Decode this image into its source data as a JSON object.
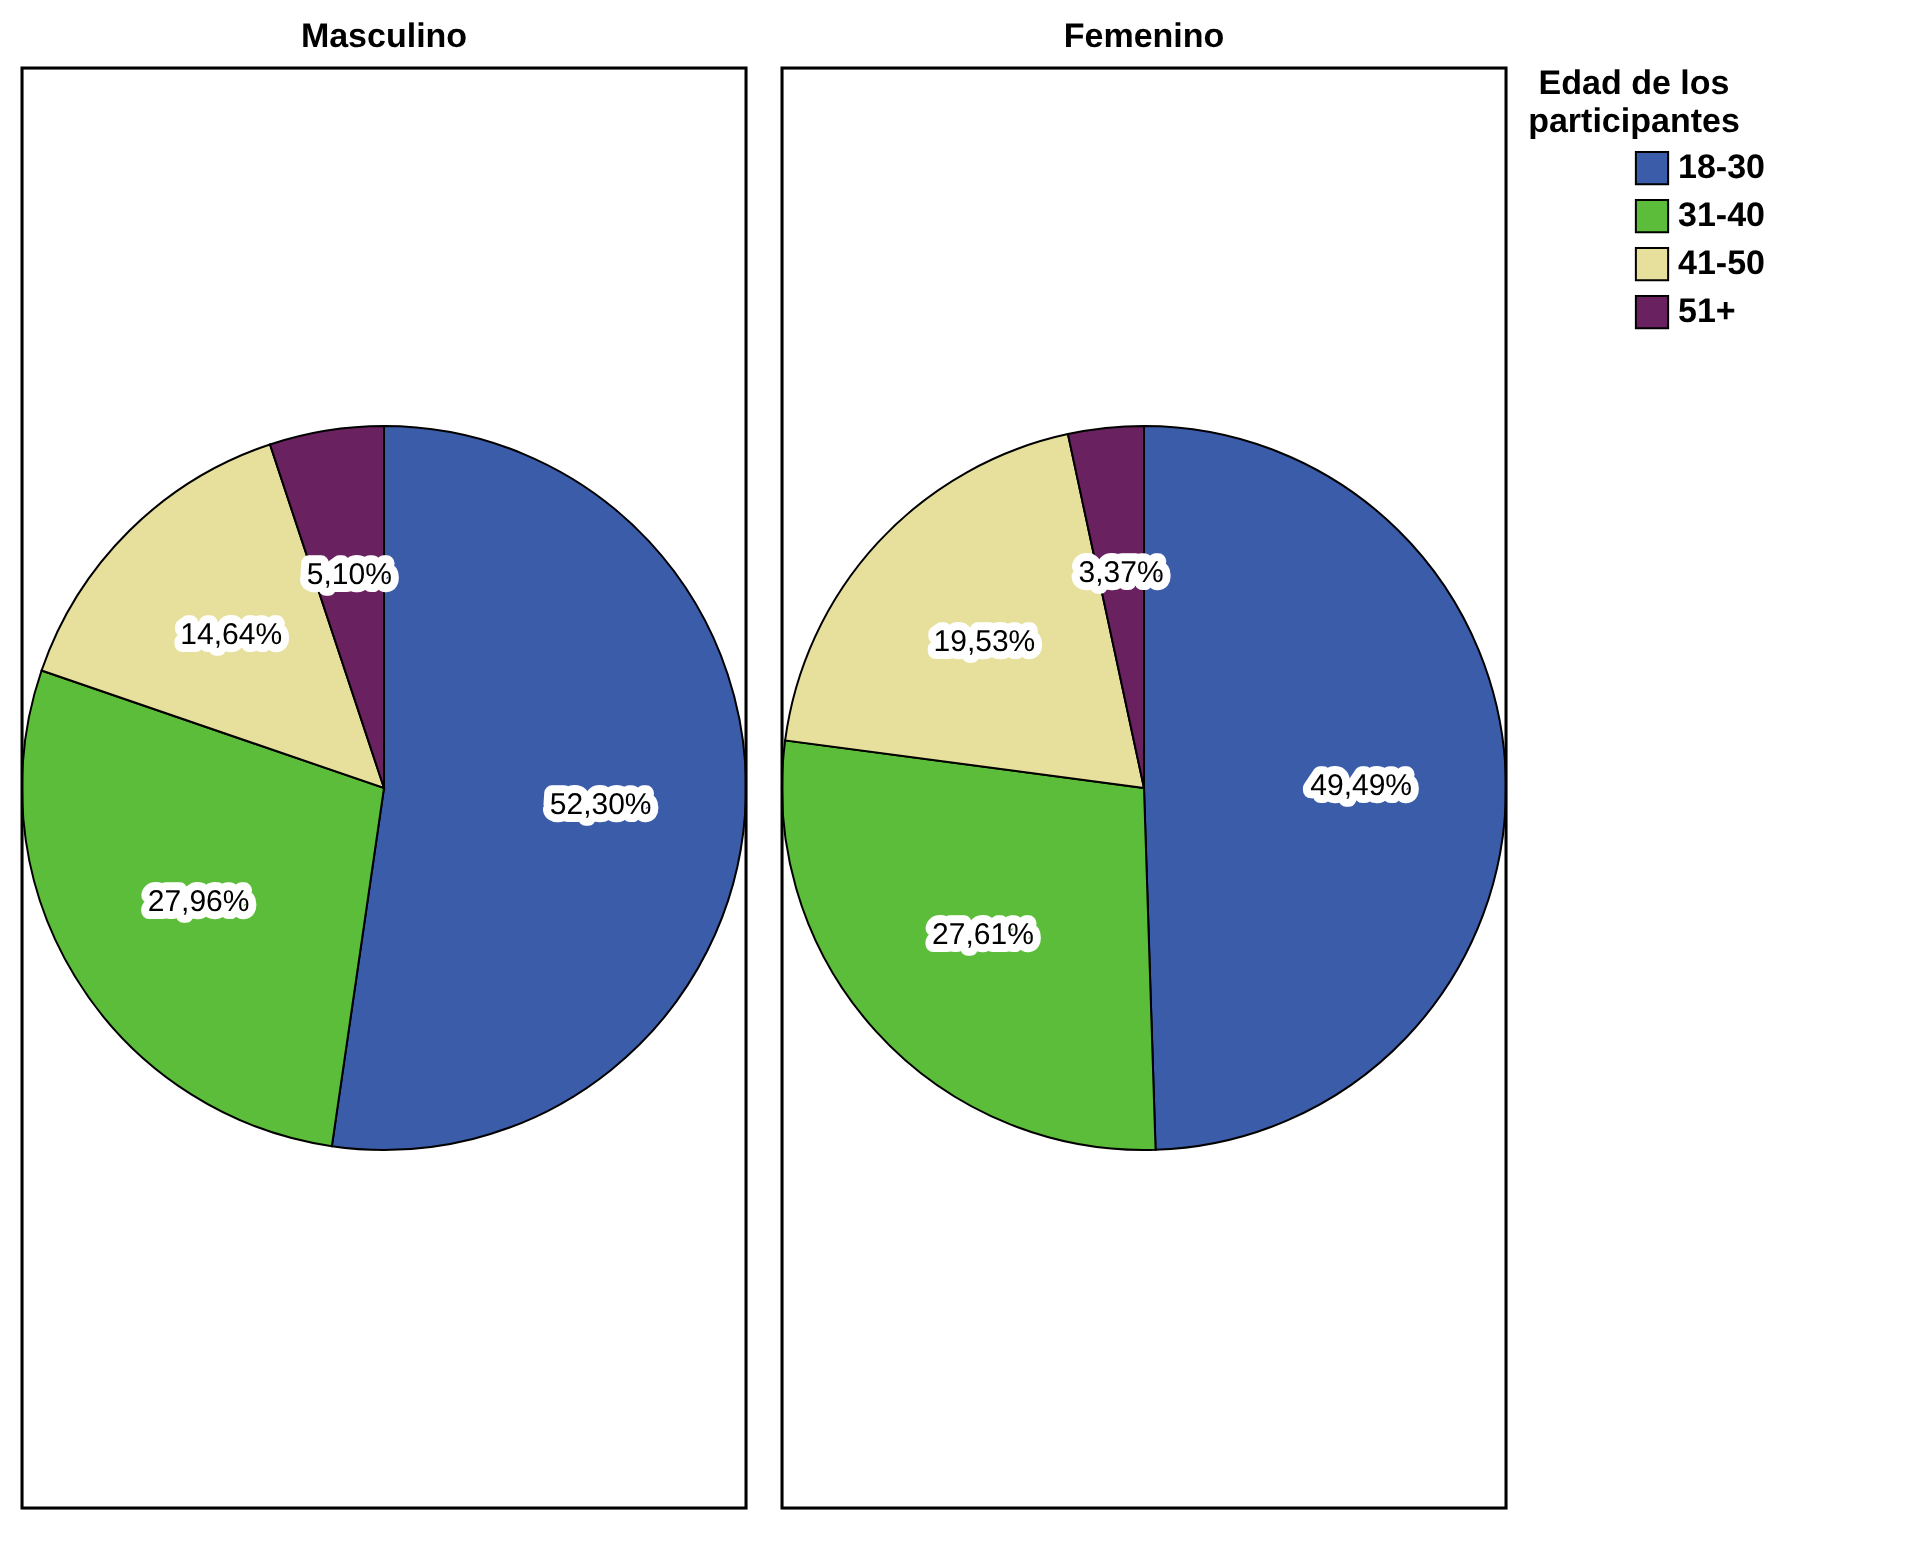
{
  "chart_data": [
    {
      "type": "pie",
      "title": "Masculino",
      "categories": [
        "18-30",
        "31-40",
        "41-50",
        "51+"
      ],
      "values": [
        52.3,
        27.96,
        14.64,
        5.1
      ],
      "colors": [
        "#3b5ca8",
        "#5cbd3a",
        "#e6e09c",
        "#6a2160"
      ],
      "value_labels": [
        "52,30%",
        "27,96%",
        "14,64%",
        "5,10%"
      ],
      "legend": "right",
      "legend_title": "Edad de los participantes"
    },
    {
      "type": "pie",
      "title": "Femenino",
      "categories": [
        null,
        null,
        null,
        null
      ],
      "values": [
        49.49,
        27.61,
        19.53,
        3.37
      ],
      "colors": [
        "#3b5ca8",
        "#5cbd3a",
        "#e6e09c",
        "#6a2160"
      ],
      "value_labels": [
        "49,49%",
        "27,61%",
        "19,53%",
        "3,37%"
      ],
      "legend": false
    }
  ]
}
